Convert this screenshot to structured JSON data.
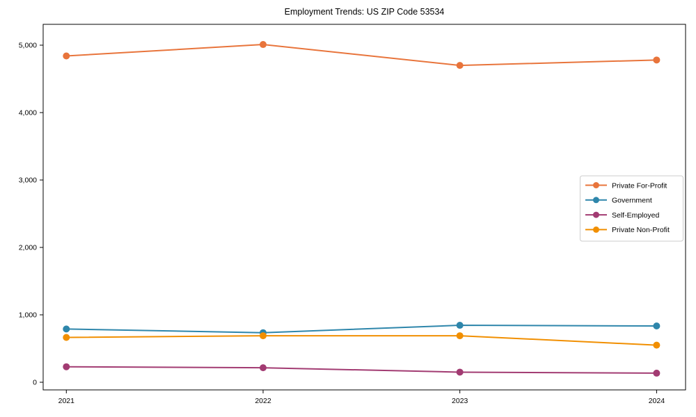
{
  "chart_data": {
    "type": "line",
    "title": "Employment Trends: US ZIP Code 53534",
    "x": [
      2021,
      2022,
      2023,
      2024
    ],
    "x_tick_labels": [
      "2021",
      "2022",
      "2023",
      "2024"
    ],
    "y_ticks": [
      0,
      1000,
      2000,
      3000,
      4000,
      5000
    ],
    "y_tick_labels": [
      "0",
      "1,000",
      "2,000",
      "3,000",
      "4,000",
      "5,000"
    ],
    "xlabel": "",
    "ylabel": "",
    "ylim": [
      -110,
      5320
    ],
    "grid": false,
    "legend_position": "center right",
    "series": [
      {
        "name": "Private For-Profit",
        "color": "#E8743B",
        "values": [
          4840,
          5010,
          4700,
          4780
        ]
      },
      {
        "name": "Government",
        "color": "#2E86AB",
        "values": [
          790,
          735,
          845,
          835
        ]
      },
      {
        "name": "Self-Employed",
        "color": "#A23B72",
        "values": [
          230,
          215,
          150,
          135
        ]
      },
      {
        "name": "Private Non-Profit",
        "color": "#F18F01",
        "values": [
          665,
          690,
          690,
          550
        ]
      }
    ]
  }
}
